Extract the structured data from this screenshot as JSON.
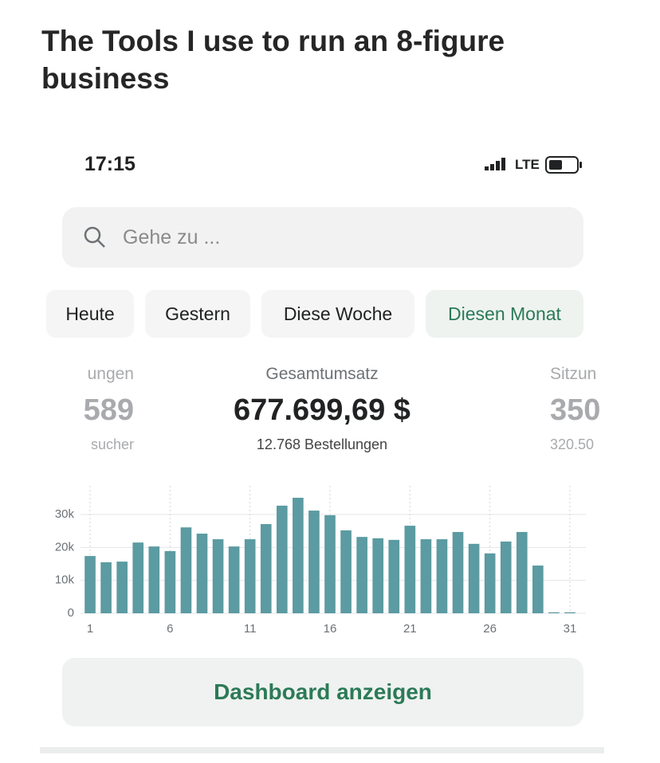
{
  "header": {
    "title": "The Tools I use to run an 8-figure business"
  },
  "status_bar": {
    "time": "17:15",
    "network": "LTE"
  },
  "search": {
    "placeholder": "Gehe zu ..."
  },
  "tabs": [
    "Heute",
    "Gestern",
    "Diese Woche",
    "Diesen Monat"
  ],
  "stats": {
    "left": {
      "label": "ungen",
      "value": "589",
      "sub": "sucher"
    },
    "center": {
      "label": "Gesamtumsatz",
      "value": "677.699,69 $",
      "sub": "12.768 Bestellungen"
    },
    "right": {
      "label": "Sitzun",
      "value": "350",
      "sub": "320.50"
    }
  },
  "chart_data": {
    "type": "bar",
    "x": [
      1,
      2,
      3,
      4,
      5,
      6,
      7,
      8,
      9,
      10,
      11,
      12,
      13,
      14,
      15,
      16,
      17,
      18,
      19,
      20,
      21,
      22,
      23,
      24,
      25,
      26,
      27,
      28,
      29,
      30,
      31
    ],
    "values": [
      17400,
      15500,
      15700,
      21500,
      20300,
      18900,
      26100,
      24200,
      22500,
      20300,
      22500,
      27100,
      32700,
      35100,
      31200,
      29800,
      25200,
      23200,
      22800,
      22300,
      26600,
      22500,
      22500,
      24700,
      21100,
      18200,
      21800,
      24700,
      14500,
      300,
      300
    ],
    "color": "#5b9ba1",
    "xlim": [
      0.5,
      31.5
    ],
    "xticks": [
      1,
      6,
      11,
      16,
      21,
      26,
      31
    ],
    "ylim": [
      0,
      38000
    ],
    "yticks": [
      0,
      {
        "value": 10000,
        "label": "10k"
      },
      {
        "value": 20000,
        "label": "20k"
      },
      {
        "value": 30000,
        "label": "30k"
      }
    ],
    "grid": true
  },
  "button": {
    "label": "Dashboard anzeigen"
  }
}
